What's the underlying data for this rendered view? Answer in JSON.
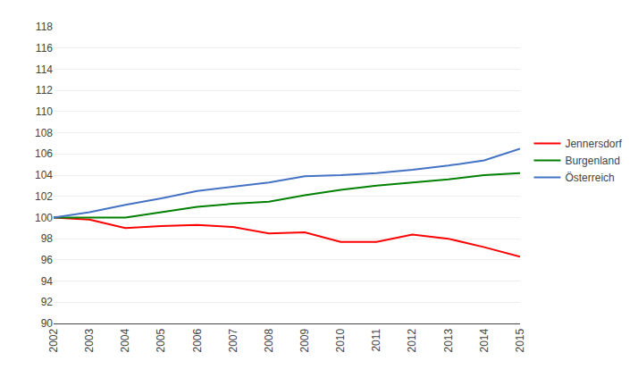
{
  "chart_data": {
    "type": "line",
    "x": [
      2002,
      2003,
      2004,
      2005,
      2006,
      2007,
      2008,
      2009,
      2010,
      2011,
      2012,
      2013,
      2014,
      2015
    ],
    "series": [
      {
        "name": "Jennersdorf",
        "color": "#FF0000",
        "values": [
          100.0,
          99.8,
          99.0,
          99.2,
          99.3,
          99.1,
          98.5,
          98.6,
          97.7,
          97.7,
          98.4,
          98.0,
          97.2,
          96.3
        ]
      },
      {
        "name": "Burgenland",
        "color": "#008000",
        "values": [
          100.0,
          100.0,
          100.0,
          100.5,
          101.0,
          101.3,
          101.5,
          102.1,
          102.6,
          103.0,
          103.3,
          103.6,
          104.0,
          104.2
        ]
      },
      {
        "name": "Österreich",
        "color": "#4472C4",
        "values": [
          100.0,
          100.5,
          101.2,
          101.8,
          102.5,
          102.9,
          103.3,
          103.9,
          104.0,
          104.2,
          104.5,
          104.9,
          105.4,
          106.5
        ]
      }
    ],
    "xlim": [
      2002,
      2015
    ],
    "xticks": [
      2002,
      2003,
      2004,
      2005,
      2006,
      2007,
      2008,
      2009,
      2010,
      2011,
      2012,
      2013,
      2014,
      2015
    ],
    "ylim": [
      90,
      118
    ],
    "yticks": [
      90,
      92,
      94,
      96,
      98,
      100,
      102,
      104,
      106,
      108,
      110,
      112,
      114,
      116,
      118
    ],
    "grid": "y",
    "legend": "right"
  }
}
